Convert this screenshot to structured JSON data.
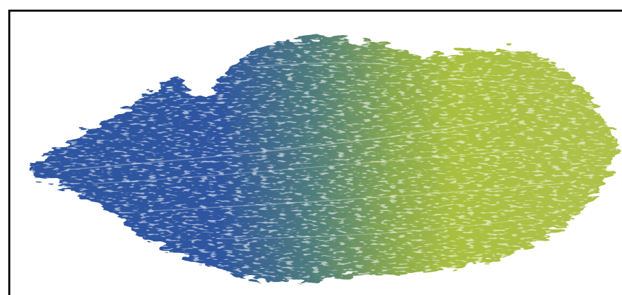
{
  "image": {
    "subject": "paint-smear",
    "colors": {
      "blue": "#2d55a0",
      "green": "#a9bf3f",
      "frame": "#111111",
      "background": "#ffffff"
    }
  }
}
